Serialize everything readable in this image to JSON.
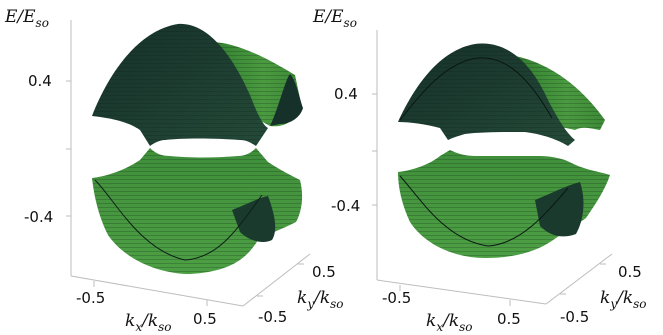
{
  "panels": [
    {
      "ylabel_main": "E/E",
      "ylabel_sub": "so",
      "yticks": [
        "0.4",
        "-0.4"
      ],
      "xticks": [
        "-0.5",
        "0.5"
      ],
      "yticks_k": [
        "0.5",
        "-0.5"
      ],
      "xlabel_main": "k",
      "xlabel_sub1": "x",
      "xlabel_mid": "/k",
      "xlabel_sub2": "so",
      "klabel_main": "k",
      "klabel_sub1": "y",
      "klabel_mid": "/k",
      "klabel_sub2": "so"
    },
    {
      "ylabel_main": "E/E",
      "ylabel_sub": "so",
      "yticks": [
        "0.4",
        "-0.4"
      ],
      "xticks": [
        "-0.5",
        "0.5"
      ],
      "yticks_k": [
        "0.5",
        "-0.5"
      ],
      "xlabel_main": "k",
      "xlabel_sub1": "x",
      "xlabel_mid": "/k",
      "xlabel_sub2": "so",
      "klabel_main": "k",
      "klabel_sub1": "y",
      "klabel_mid": "/k",
      "klabel_sub2": "so"
    }
  ],
  "colors": {
    "dark_band": "#1f3d32",
    "light_band": "#3f8f3a",
    "axis": "#bdbdbd"
  }
}
